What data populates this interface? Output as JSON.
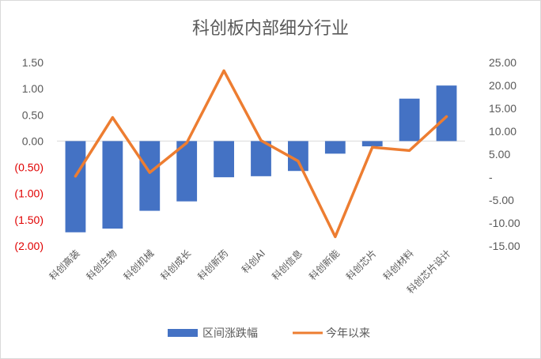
{
  "chart_data": {
    "type": "bar",
    "title": "科创板内部细分行业",
    "categories": [
      "科创高装",
      "科创生物",
      "科创机械",
      "科创成长",
      "科创新药",
      "科创AI",
      "科创信息",
      "科创新能",
      "科创芯片",
      "科创材料",
      "科创芯片设计"
    ],
    "series": [
      {
        "name": "区间涨跌幅",
        "kind": "bar",
        "axis": "left",
        "color": "#4472c4",
        "values": [
          -1.74,
          -1.67,
          -1.33,
          -1.15,
          -0.69,
          -0.67,
          -0.57,
          -0.24,
          -0.1,
          0.81,
          1.06
        ]
      },
      {
        "name": "今年以来",
        "kind": "line",
        "axis": "right",
        "color": "#ed7d31",
        "values": [
          0.2,
          13.0,
          1.0,
          7.5,
          23.2,
          8.0,
          3.5,
          -13.0,
          6.5,
          5.8,
          13.2
        ]
      }
    ],
    "y_left": {
      "range": [
        -2.0,
        1.5
      ],
      "ticks": [
        1.5,
        1.0,
        0.5,
        0.0,
        -0.5,
        -1.0,
        -1.5,
        -2.0
      ],
      "tick_labels": [
        "1.50",
        "1.00",
        "0.50",
        "0.00",
        "(0.50)",
        "(1.00)",
        "(1.50)",
        "(2.00)"
      ],
      "negative_color": "#e00000"
    },
    "y_right": {
      "range": [
        -15,
        25
      ],
      "ticks": [
        25,
        20,
        15,
        10,
        5,
        0,
        -5,
        -10,
        -15
      ],
      "tick_labels": [
        "25.00",
        "20.00",
        "15.00",
        "10.00",
        "5.00",
        "-",
        "-5.00",
        "-10.00",
        "-15.00"
      ]
    },
    "grid": false,
    "legend_position": "bottom"
  }
}
